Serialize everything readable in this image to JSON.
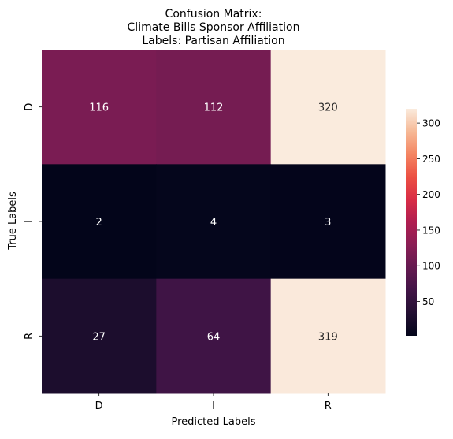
{
  "chart_data": {
    "type": "heatmap",
    "title_lines": [
      "Confusion Matrix:",
      "Climate Bills Sponsor Affiliation",
      "Labels: Partisan Affiliation"
    ],
    "xlabel": "Predicted Labels",
    "ylabel": "True Labels",
    "x_categories": [
      "D",
      "I",
      "R"
    ],
    "y_categories": [
      "D",
      "I",
      "R"
    ],
    "matrix": [
      [
        116,
        112,
        320
      ],
      [
        2,
        4,
        3
      ],
      [
        27,
        64,
        319
      ]
    ],
    "colorbar": {
      "range": [
        2,
        320
      ],
      "ticks": [
        50,
        100,
        150,
        200,
        250,
        300
      ],
      "colormap": "rocket"
    }
  }
}
